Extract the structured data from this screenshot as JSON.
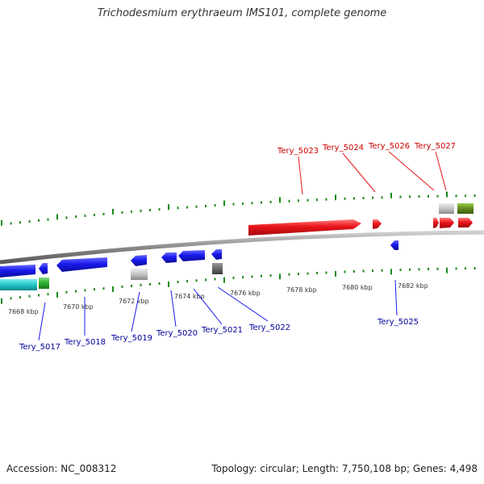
{
  "title": "Trichodesmium erythraeum IMS101, complete genome",
  "footer": {
    "accession": "Accession: NC_008312",
    "topology": "Topology: circular; Length: 7,750,108 bp; Genes: 4,498"
  },
  "colors": {
    "forward": "#e8141a",
    "reverse": "#1a1aee",
    "rna": "#22c5c8",
    "pseudo": "#bdbdbd",
    "other": "#5f8a1e",
    "tick": "#1a8a1a",
    "backbone": "#8a8a8a",
    "forward_label": "#cc0000",
    "reverse_label": "#000099"
  },
  "scale": {
    "unit": "kbp",
    "ticks": [
      "7668 kbp",
      "7670 kbp",
      "7672 kbp",
      "7674 kbp",
      "7676 kbp",
      "7678 kbp",
      "7680 kbp",
      "7682 kbp"
    ]
  },
  "forward_labels": [
    "Tery_5023",
    "Tery_5024",
    "Tery_5026",
    "Tery_5027"
  ],
  "reverse_labels": [
    "Tery_5017",
    "Tery_5018",
    "Tery_5019",
    "Tery_5020",
    "Tery_5021",
    "Tery_5022",
    "Tery_5025"
  ]
}
